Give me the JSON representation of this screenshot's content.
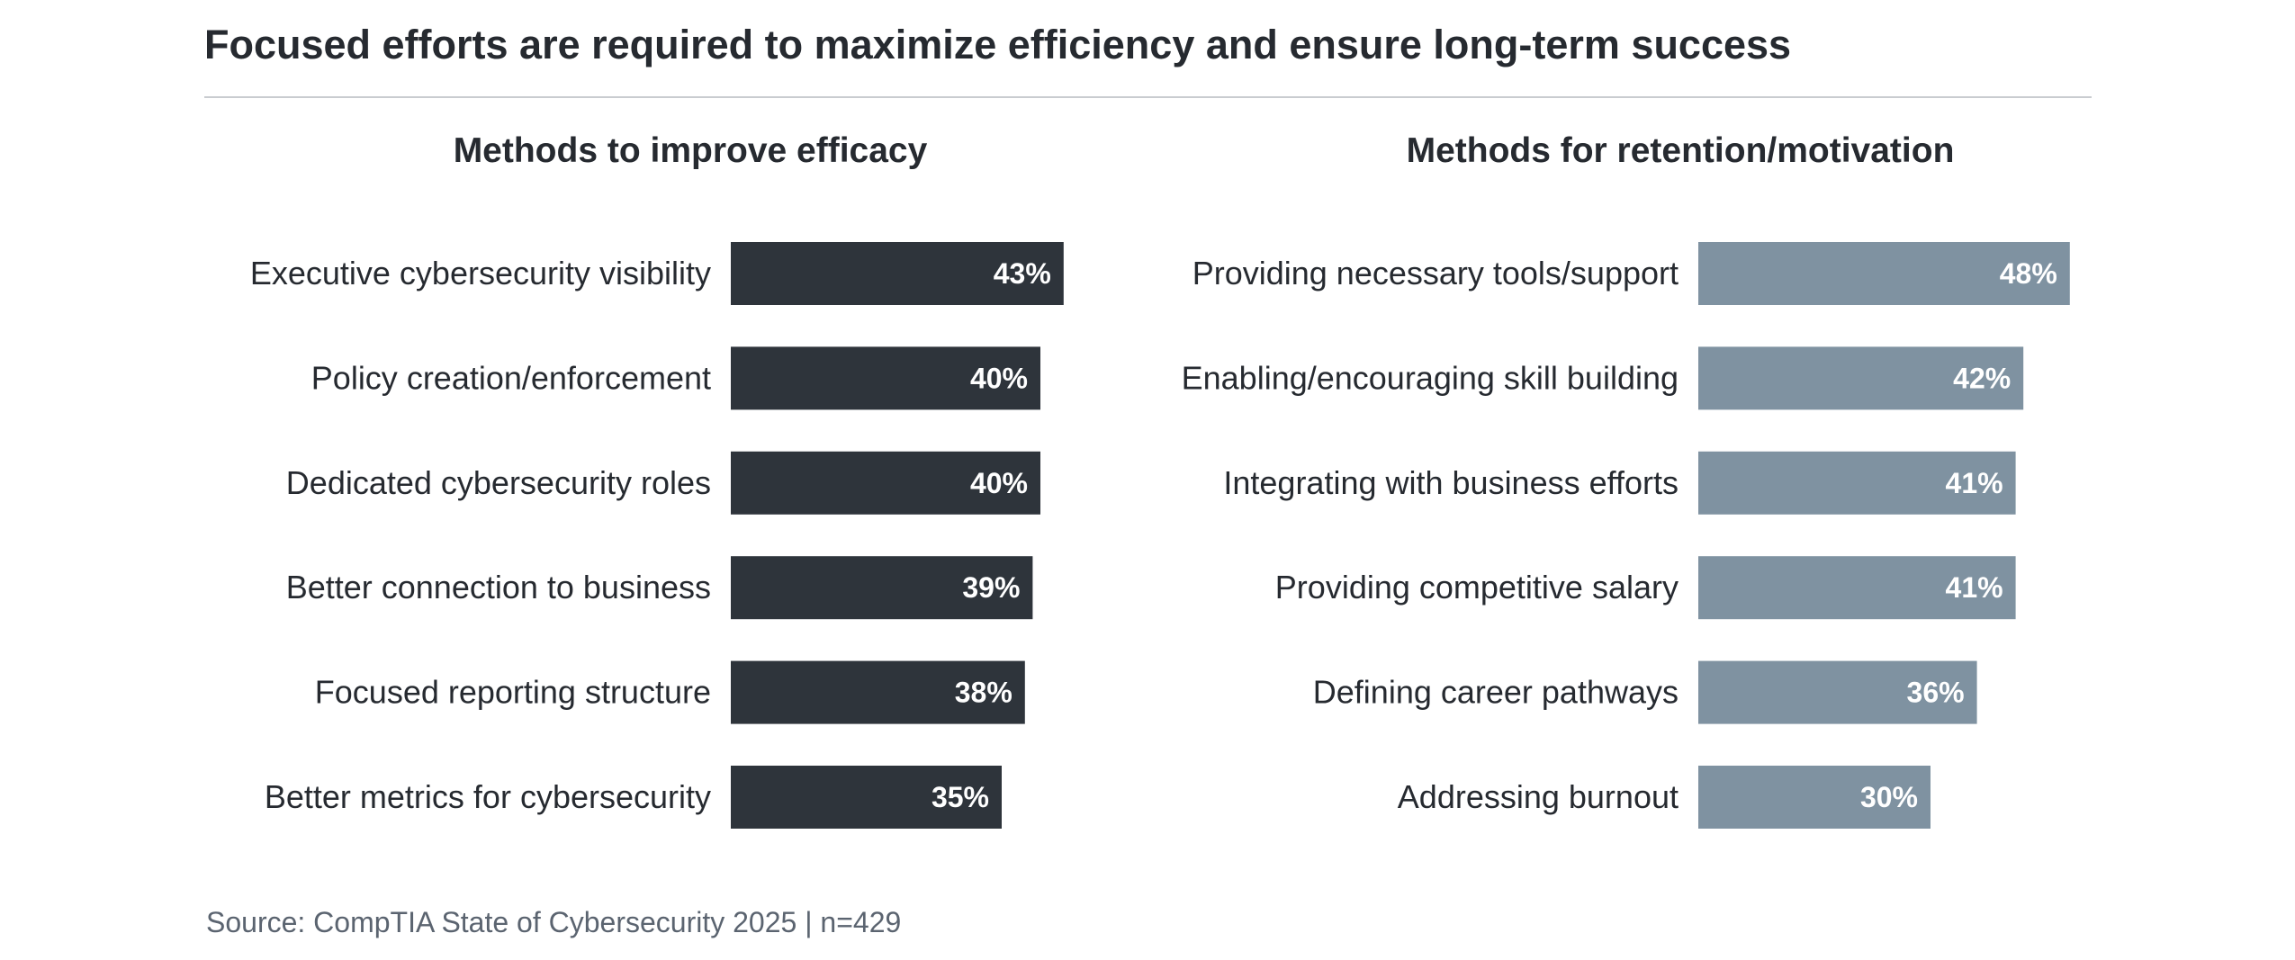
{
  "page": {
    "title": "Focused efforts are required to maximize efficiency and ensure long-term success",
    "source": "Source: CompTIA State of Cybersecurity 2025 | n=429"
  },
  "colors": {
    "left_bar": "#2e343b",
    "right_bar": "#7f92a1",
    "label_text": "#262a30",
    "value_text": "#ffffff",
    "rule": "#c9ccd0"
  },
  "chart_data": [
    {
      "type": "bar",
      "orientation": "horizontal",
      "title": "Methods to improve efficacy",
      "unit": "%",
      "categories": [
        "Executive cybersecurity visibility",
        "Policy creation/enforcement",
        "Dedicated cybersecurity roles",
        "Better connection to business",
        "Focused reporting structure",
        "Better metrics for cybersecurity"
      ],
      "values": [
        43,
        40,
        40,
        39,
        38,
        35
      ],
      "value_labels": [
        "43%",
        "40%",
        "40%",
        "39%",
        "38%",
        "35%"
      ],
      "xlim": [
        0,
        100
      ],
      "grid": false,
      "legend": "none"
    },
    {
      "type": "bar",
      "orientation": "horizontal",
      "title": "Methods for retention/motivation",
      "unit": "%",
      "categories": [
        "Providing necessary tools/support",
        "Enabling/encouraging skill building",
        "Integrating with business efforts",
        "Providing competitive salary",
        "Defining career pathways",
        "Addressing burnout"
      ],
      "values": [
        48,
        42,
        41,
        41,
        36,
        30
      ],
      "value_labels": [
        "48%",
        "42%",
        "41%",
        "41%",
        "36%",
        "30%"
      ],
      "xlim": [
        0,
        100
      ],
      "grid": false,
      "legend": "none"
    }
  ]
}
